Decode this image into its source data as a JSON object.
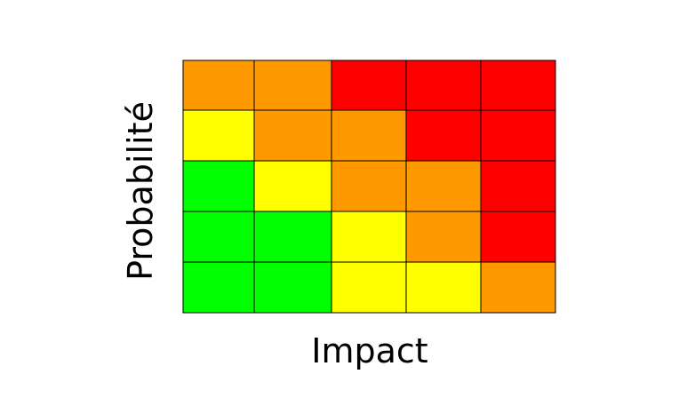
{
  "chart_data": {
    "type": "heatmap",
    "title": "",
    "xlabel": "Impact",
    "ylabel": "Probabilité",
    "columns": 5,
    "rows": 5,
    "legend": "none",
    "grid": true,
    "colors": {
      "G": "#00ff00",
      "Y": "#ffff00",
      "O": "#ff9900",
      "R": "#ff0000",
      "border": "#000000"
    },
    "cells": [
      [
        "O",
        "O",
        "R",
        "R",
        "R"
      ],
      [
        "Y",
        "O",
        "O",
        "R",
        "R"
      ],
      [
        "G",
        "Y",
        "O",
        "O",
        "R"
      ],
      [
        "G",
        "G",
        "Y",
        "O",
        "R"
      ],
      [
        "G",
        "G",
        "Y",
        "Y",
        "O"
      ]
    ]
  }
}
